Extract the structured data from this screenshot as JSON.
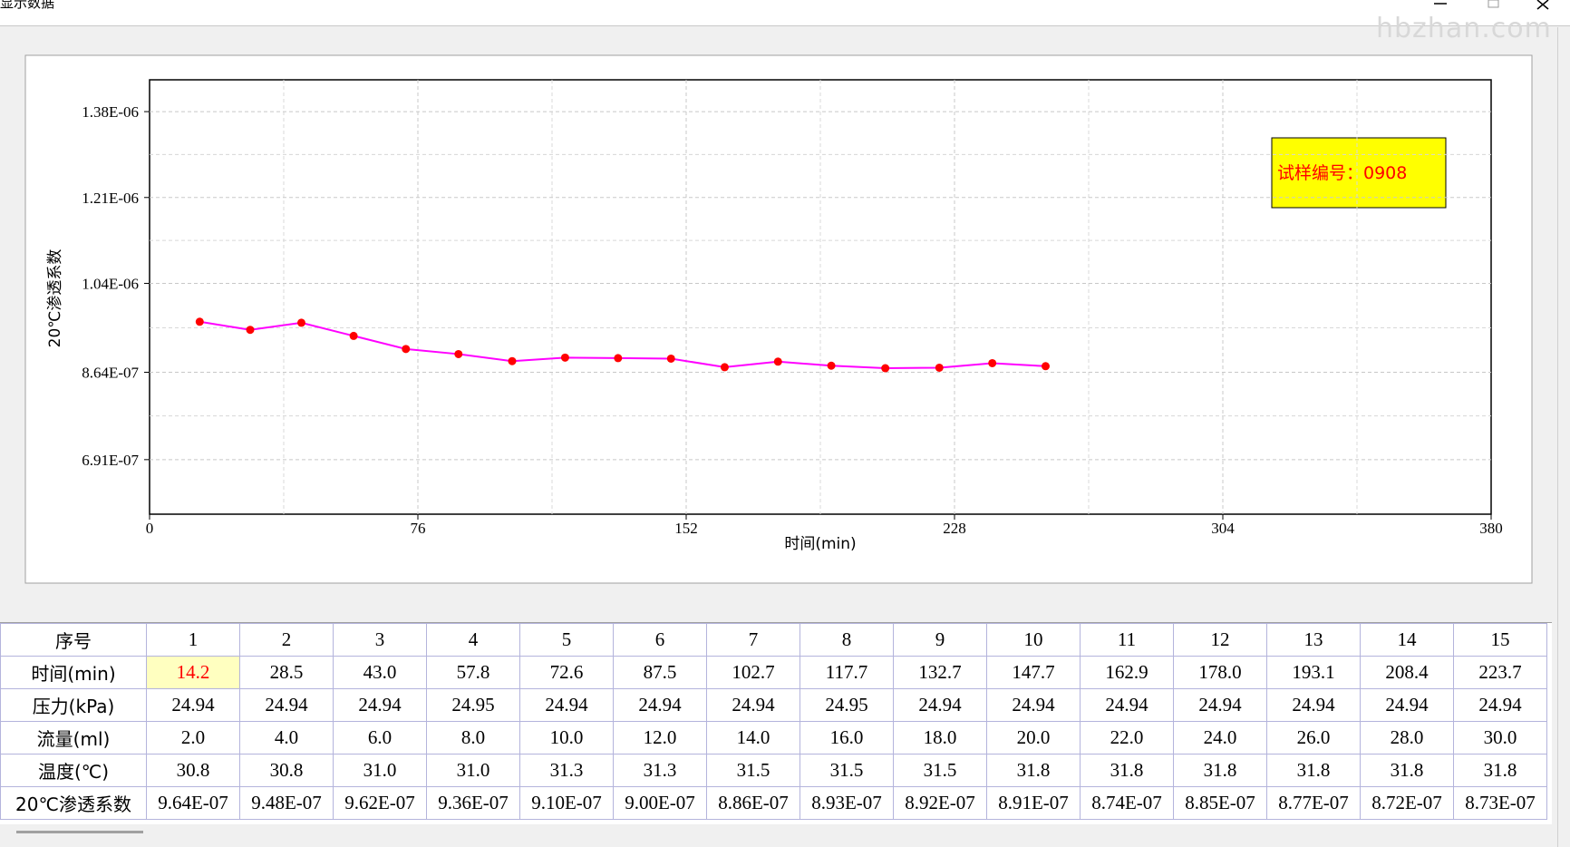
{
  "window": {
    "title": "显示数据",
    "watermark": "hbzhan.com"
  },
  "chart_data": {
    "type": "line",
    "x_label": "时间(min)",
    "y_label": "20℃渗透系数",
    "legend_text": "试样编号：0908",
    "color": "#ff00ff",
    "marker_color": "#ff0000",
    "x": [
      14.2,
      28.5,
      43.0,
      57.8,
      72.6,
      87.5,
      102.7,
      117.7,
      132.7,
      147.7,
      162.9,
      178.0,
      193.1,
      208.4,
      223.7,
      238.7,
      253.8
    ],
    "values": [
      9.64e-07,
      9.48e-07,
      9.62e-07,
      9.36e-07,
      9.1e-07,
      9e-07,
      8.86e-07,
      8.93e-07,
      8.92e-07,
      8.91e-07,
      8.74e-07,
      8.85e-07,
      8.77e-07,
      8.72e-07,
      8.73e-07,
      8.82e-07,
      8.76e-07
    ],
    "xlim": [
      0,
      380
    ],
    "xticks": [
      0,
      76,
      152,
      228,
      304,
      380
    ],
    "ylim": [
      5.83e-07,
      1.443e-06
    ],
    "yticks": [
      {
        "value": 6.91e-07,
        "label": "6.91E-07"
      },
      {
        "value": 8.64e-07,
        "label": "8.64E-07"
      },
      {
        "value": 1.04e-06,
        "label": "1.04E-06"
      },
      {
        "value": 1.21e-06,
        "label": "1.21E-06"
      },
      {
        "value": 1.38e-06,
        "label": "1.38E-06"
      }
    ],
    "grid": true
  },
  "table": {
    "header": [
      "序号",
      "1",
      "2",
      "3",
      "4",
      "5",
      "6",
      "7",
      "8",
      "9",
      "10",
      "11",
      "12",
      "13",
      "14",
      "15"
    ],
    "rows": [
      [
        "时间(min)",
        "14.2",
        "28.5",
        "43.0",
        "57.8",
        "72.6",
        "87.5",
        "102.7",
        "117.7",
        "132.7",
        "147.7",
        "162.9",
        "178.0",
        "193.1",
        "208.4",
        "223.7"
      ],
      [
        "压力(kPa)",
        "24.94",
        "24.94",
        "24.94",
        "24.95",
        "24.94",
        "24.94",
        "24.94",
        "24.95",
        "24.94",
        "24.94",
        "24.94",
        "24.94",
        "24.94",
        "24.94",
        "24.94"
      ],
      [
        "流量(ml)",
        "2.0",
        "4.0",
        "6.0",
        "8.0",
        "10.0",
        "12.0",
        "14.0",
        "16.0",
        "18.0",
        "20.0",
        "22.0",
        "24.0",
        "26.0",
        "28.0",
        "30.0"
      ],
      [
        "温度(℃)",
        "30.8",
        "30.8",
        "31.0",
        "31.0",
        "31.3",
        "31.3",
        "31.5",
        "31.5",
        "31.5",
        "31.8",
        "31.8",
        "31.8",
        "31.8",
        "31.8",
        "31.8"
      ],
      [
        "20℃渗透系数",
        "9.64E-07",
        "9.48E-07",
        "9.62E-07",
        "9.36E-07",
        "9.10E-07",
        "9.00E-07",
        "8.86E-07",
        "8.93E-07",
        "8.92E-07",
        "8.91E-07",
        "8.74E-07",
        "8.85E-07",
        "8.77E-07",
        "8.72E-07",
        "8.73E-07"
      ]
    ]
  }
}
